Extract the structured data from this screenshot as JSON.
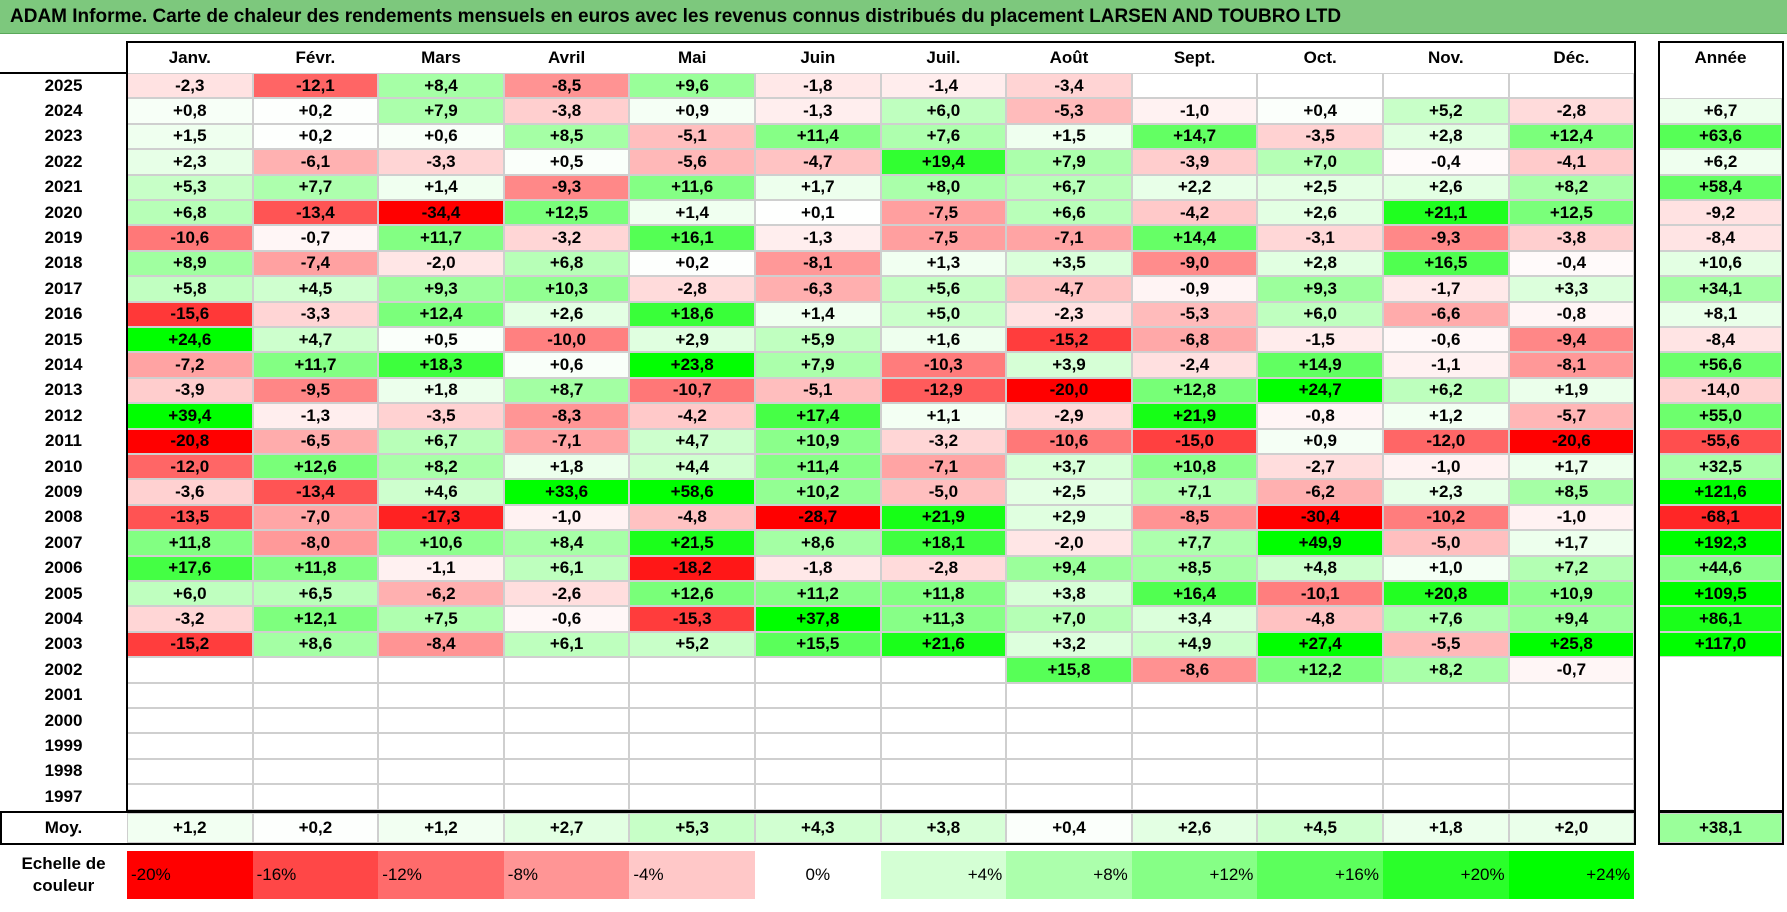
{
  "title": "ADAM Informe. Carte de chaleur des rendements mensuels en euros avec les revenus connus distribués du placement LARSEN AND TOUBRO LTD",
  "chart_data": {
    "type": "heatmap",
    "title": "ADAM Informe. Carte de chaleur des rendements mensuels en euros avec les revenus connus distribués du placement LARSEN AND TOUBRO LTD",
    "columns": [
      "Janv.",
      "Févr.",
      "Mars",
      "Avril",
      "Mai",
      "Juin",
      "Juil.",
      "Août",
      "Sept.",
      "Oct.",
      "Nov.",
      "Déc."
    ],
    "year_column_label": "Année",
    "rows": [
      {
        "year": "2025",
        "values": [
          "-2,3",
          "-12,1",
          "+8,4",
          "-8,5",
          "+9,6",
          "-1,8",
          "-1,4",
          "-3,4",
          "",
          "",
          "",
          ""
        ],
        "annual": ""
      },
      {
        "year": "2024",
        "values": [
          "+0,8",
          "+0,2",
          "+7,9",
          "-3,8",
          "+0,9",
          "-1,3",
          "+6,0",
          "-5,3",
          "-1,0",
          "+0,4",
          "+5,2",
          "-2,8"
        ],
        "annual": "+6,7"
      },
      {
        "year": "2023",
        "values": [
          "+1,5",
          "+0,2",
          "+0,6",
          "+8,5",
          "-5,1",
          "+11,4",
          "+7,6",
          "+1,5",
          "+14,7",
          "-3,5",
          "+2,8",
          "+12,4"
        ],
        "annual": "+63,6"
      },
      {
        "year": "2022",
        "values": [
          "+2,3",
          "-6,1",
          "-3,3",
          "+0,5",
          "-5,6",
          "-4,7",
          "+19,4",
          "+7,9",
          "-3,9",
          "+7,0",
          "-0,4",
          "-4,1"
        ],
        "annual": "+6,2"
      },
      {
        "year": "2021",
        "values": [
          "+5,3",
          "+7,7",
          "+1,4",
          "-9,3",
          "+11,6",
          "+1,7",
          "+8,0",
          "+6,7",
          "+2,2",
          "+2,5",
          "+2,6",
          "+8,2"
        ],
        "annual": "+58,4"
      },
      {
        "year": "2020",
        "values": [
          "+6,8",
          "-13,4",
          "-34,4",
          "+12,5",
          "+1,4",
          "+0,1",
          "-7,5",
          "+6,6",
          "-4,2",
          "+2,6",
          "+21,1",
          "+12,5"
        ],
        "annual": "-9,2"
      },
      {
        "year": "2019",
        "values": [
          "-10,6",
          "-0,7",
          "+11,7",
          "-3,2",
          "+16,1",
          "-1,3",
          "-7,5",
          "-7,1",
          "+14,4",
          "-3,1",
          "-9,3",
          "-3,8"
        ],
        "annual": "-8,4"
      },
      {
        "year": "2018",
        "values": [
          "+8,9",
          "-7,4",
          "-2,0",
          "+6,8",
          "+0,2",
          "-8,1",
          "+1,3",
          "+3,5",
          "-9,0",
          "+2,8",
          "+16,5",
          "-0,4"
        ],
        "annual": "+10,6"
      },
      {
        "year": "2017",
        "values": [
          "+5,8",
          "+4,5",
          "+9,3",
          "+10,3",
          "-2,8",
          "-6,3",
          "+5,6",
          "-4,7",
          "-0,9",
          "+9,3",
          "-1,7",
          "+3,3"
        ],
        "annual": "+34,1"
      },
      {
        "year": "2016",
        "values": [
          "-15,6",
          "-3,3",
          "+12,4",
          "+2,6",
          "+18,6",
          "+1,4",
          "+5,0",
          "-2,3",
          "-5,3",
          "+6,0",
          "-6,6",
          "-0,8"
        ],
        "annual": "+8,1"
      },
      {
        "year": "2015",
        "values": [
          "+24,6",
          "+4,7",
          "+0,5",
          "-10,0",
          "+2,9",
          "+5,9",
          "+1,6",
          "-15,2",
          "-6,8",
          "-1,5",
          "-0,6",
          "-9,4"
        ],
        "annual": "-8,4"
      },
      {
        "year": "2014",
        "values": [
          "-7,2",
          "+11,7",
          "+18,3",
          "+0,6",
          "+23,8",
          "+7,9",
          "-10,3",
          "+3,9",
          "-2,4",
          "+14,9",
          "-1,1",
          "-8,1"
        ],
        "annual": "+56,6"
      },
      {
        "year": "2013",
        "values": [
          "-3,9",
          "-9,5",
          "+1,8",
          "+8,7",
          "-10,7",
          "-5,1",
          "-12,9",
          "-20,0",
          "+12,8",
          "+24,7",
          "+6,2",
          "+1,9"
        ],
        "annual": "-14,0"
      },
      {
        "year": "2012",
        "values": [
          "+39,4",
          "-1,3",
          "-3,5",
          "-8,3",
          "-4,2",
          "+17,4",
          "+1,1",
          "-2,9",
          "+21,9",
          "-0,8",
          "+1,2",
          "-5,7"
        ],
        "annual": "+55,0"
      },
      {
        "year": "2011",
        "values": [
          "-20,8",
          "-6,5",
          "+6,7",
          "-7,1",
          "+4,7",
          "+10,9",
          "-3,2",
          "-10,6",
          "-15,0",
          "+0,9",
          "-12,0",
          "-20,6"
        ],
        "annual": "-55,6"
      },
      {
        "year": "2010",
        "values": [
          "-12,0",
          "+12,6",
          "+8,2",
          "+1,8",
          "+4,4",
          "+11,4",
          "-7,1",
          "+3,7",
          "+10,8",
          "-2,7",
          "-1,0",
          "+1,7"
        ],
        "annual": "+32,5"
      },
      {
        "year": "2009",
        "values": [
          "-3,6",
          "-13,4",
          "+4,6",
          "+33,6",
          "+58,6",
          "+10,2",
          "-5,0",
          "+2,5",
          "+7,1",
          "-6,2",
          "+2,3",
          "+8,5"
        ],
        "annual": "+121,6"
      },
      {
        "year": "2008",
        "values": [
          "-13,5",
          "-7,0",
          "-17,3",
          "-1,0",
          "-4,8",
          "-28,7",
          "+21,9",
          "+2,9",
          "-8,5",
          "-30,4",
          "-10,2",
          "-1,0"
        ],
        "annual": "-68,1"
      },
      {
        "year": "2007",
        "values": [
          "+11,8",
          "-8,0",
          "+10,6",
          "+8,4",
          "+21,5",
          "+8,6",
          "+18,1",
          "-2,0",
          "+7,7",
          "+49,9",
          "-5,0",
          "+1,7"
        ],
        "annual": "+192,3"
      },
      {
        "year": "2006",
        "values": [
          "+17,6",
          "+11,8",
          "-1,1",
          "+6,1",
          "-18,2",
          "-1,8",
          "-2,8",
          "+9,4",
          "+8,5",
          "+4,8",
          "+1,0",
          "+7,2"
        ],
        "annual": "+44,6"
      },
      {
        "year": "2005",
        "values": [
          "+6,0",
          "+6,5",
          "-6,2",
          "-2,6",
          "+12,6",
          "+11,2",
          "+11,8",
          "+3,8",
          "+16,4",
          "-10,1",
          "+20,8",
          "+10,9"
        ],
        "annual": "+109,5"
      },
      {
        "year": "2004",
        "values": [
          "-3,2",
          "+12,1",
          "+7,5",
          "-0,6",
          "-15,3",
          "+37,8",
          "+11,3",
          "+7,0",
          "+3,4",
          "-4,8",
          "+7,6",
          "+9,4"
        ],
        "annual": "+86,1"
      },
      {
        "year": "2003",
        "values": [
          "-15,2",
          "+8,6",
          "-8,4",
          "+6,1",
          "+5,2",
          "+15,5",
          "+21,6",
          "+3,2",
          "+4,9",
          "+27,4",
          "-5,5",
          "+25,8"
        ],
        "annual": "+117,0"
      },
      {
        "year": "2002",
        "values": [
          "",
          "",
          "",
          "",
          "",
          "",
          "",
          "+15,8",
          "-8,6",
          "+12,2",
          "+8,2",
          "-0,7"
        ],
        "annual": ""
      },
      {
        "year": "2001",
        "values": [
          "",
          "",
          "",
          "",
          "",
          "",
          "",
          "",
          "",
          "",
          "",
          ""
        ],
        "annual": ""
      },
      {
        "year": "2000",
        "values": [
          "",
          "",
          "",
          "",
          "",
          "",
          "",
          "",
          "",
          "",
          "",
          ""
        ],
        "annual": ""
      },
      {
        "year": "1999",
        "values": [
          "",
          "",
          "",
          "",
          "",
          "",
          "",
          "",
          "",
          "",
          "",
          ""
        ],
        "annual": ""
      },
      {
        "year": "1998",
        "values": [
          "",
          "",
          "",
          "",
          "",
          "",
          "",
          "",
          "",
          "",
          "",
          ""
        ],
        "annual": ""
      },
      {
        "year": "1997",
        "values": [
          "",
          "",
          "",
          "",
          "",
          "",
          "",
          "",
          "",
          "",
          "",
          ""
        ],
        "annual": ""
      }
    ],
    "average": {
      "label": "Moy.",
      "values": [
        "+1,2",
        "+0,2",
        "+1,2",
        "+2,7",
        "+5,3",
        "+4,3",
        "+3,8",
        "+0,4",
        "+2,6",
        "+4,5",
        "+1,8",
        "+2,0"
      ],
      "annual": "+38,1"
    },
    "color_scale": {
      "label": "Echelle de couleur",
      "labels": [
        "-20%",
        "-16%",
        "-12%",
        "-8%",
        "-4%",
        "0%",
        "+4%",
        "+8%",
        "+12%",
        "+16%",
        "+20%",
        "+24%"
      ],
      "colors": [
        "#ff0000",
        "#ff4747",
        "#ff6b6b",
        "#ff9595",
        "#ffc8c8",
        "#ffffff",
        "#d4ffd4",
        "#acffac",
        "#86ff86",
        "#5cff5c",
        "#2aff2a",
        "#00ff00"
      ]
    }
  }
}
